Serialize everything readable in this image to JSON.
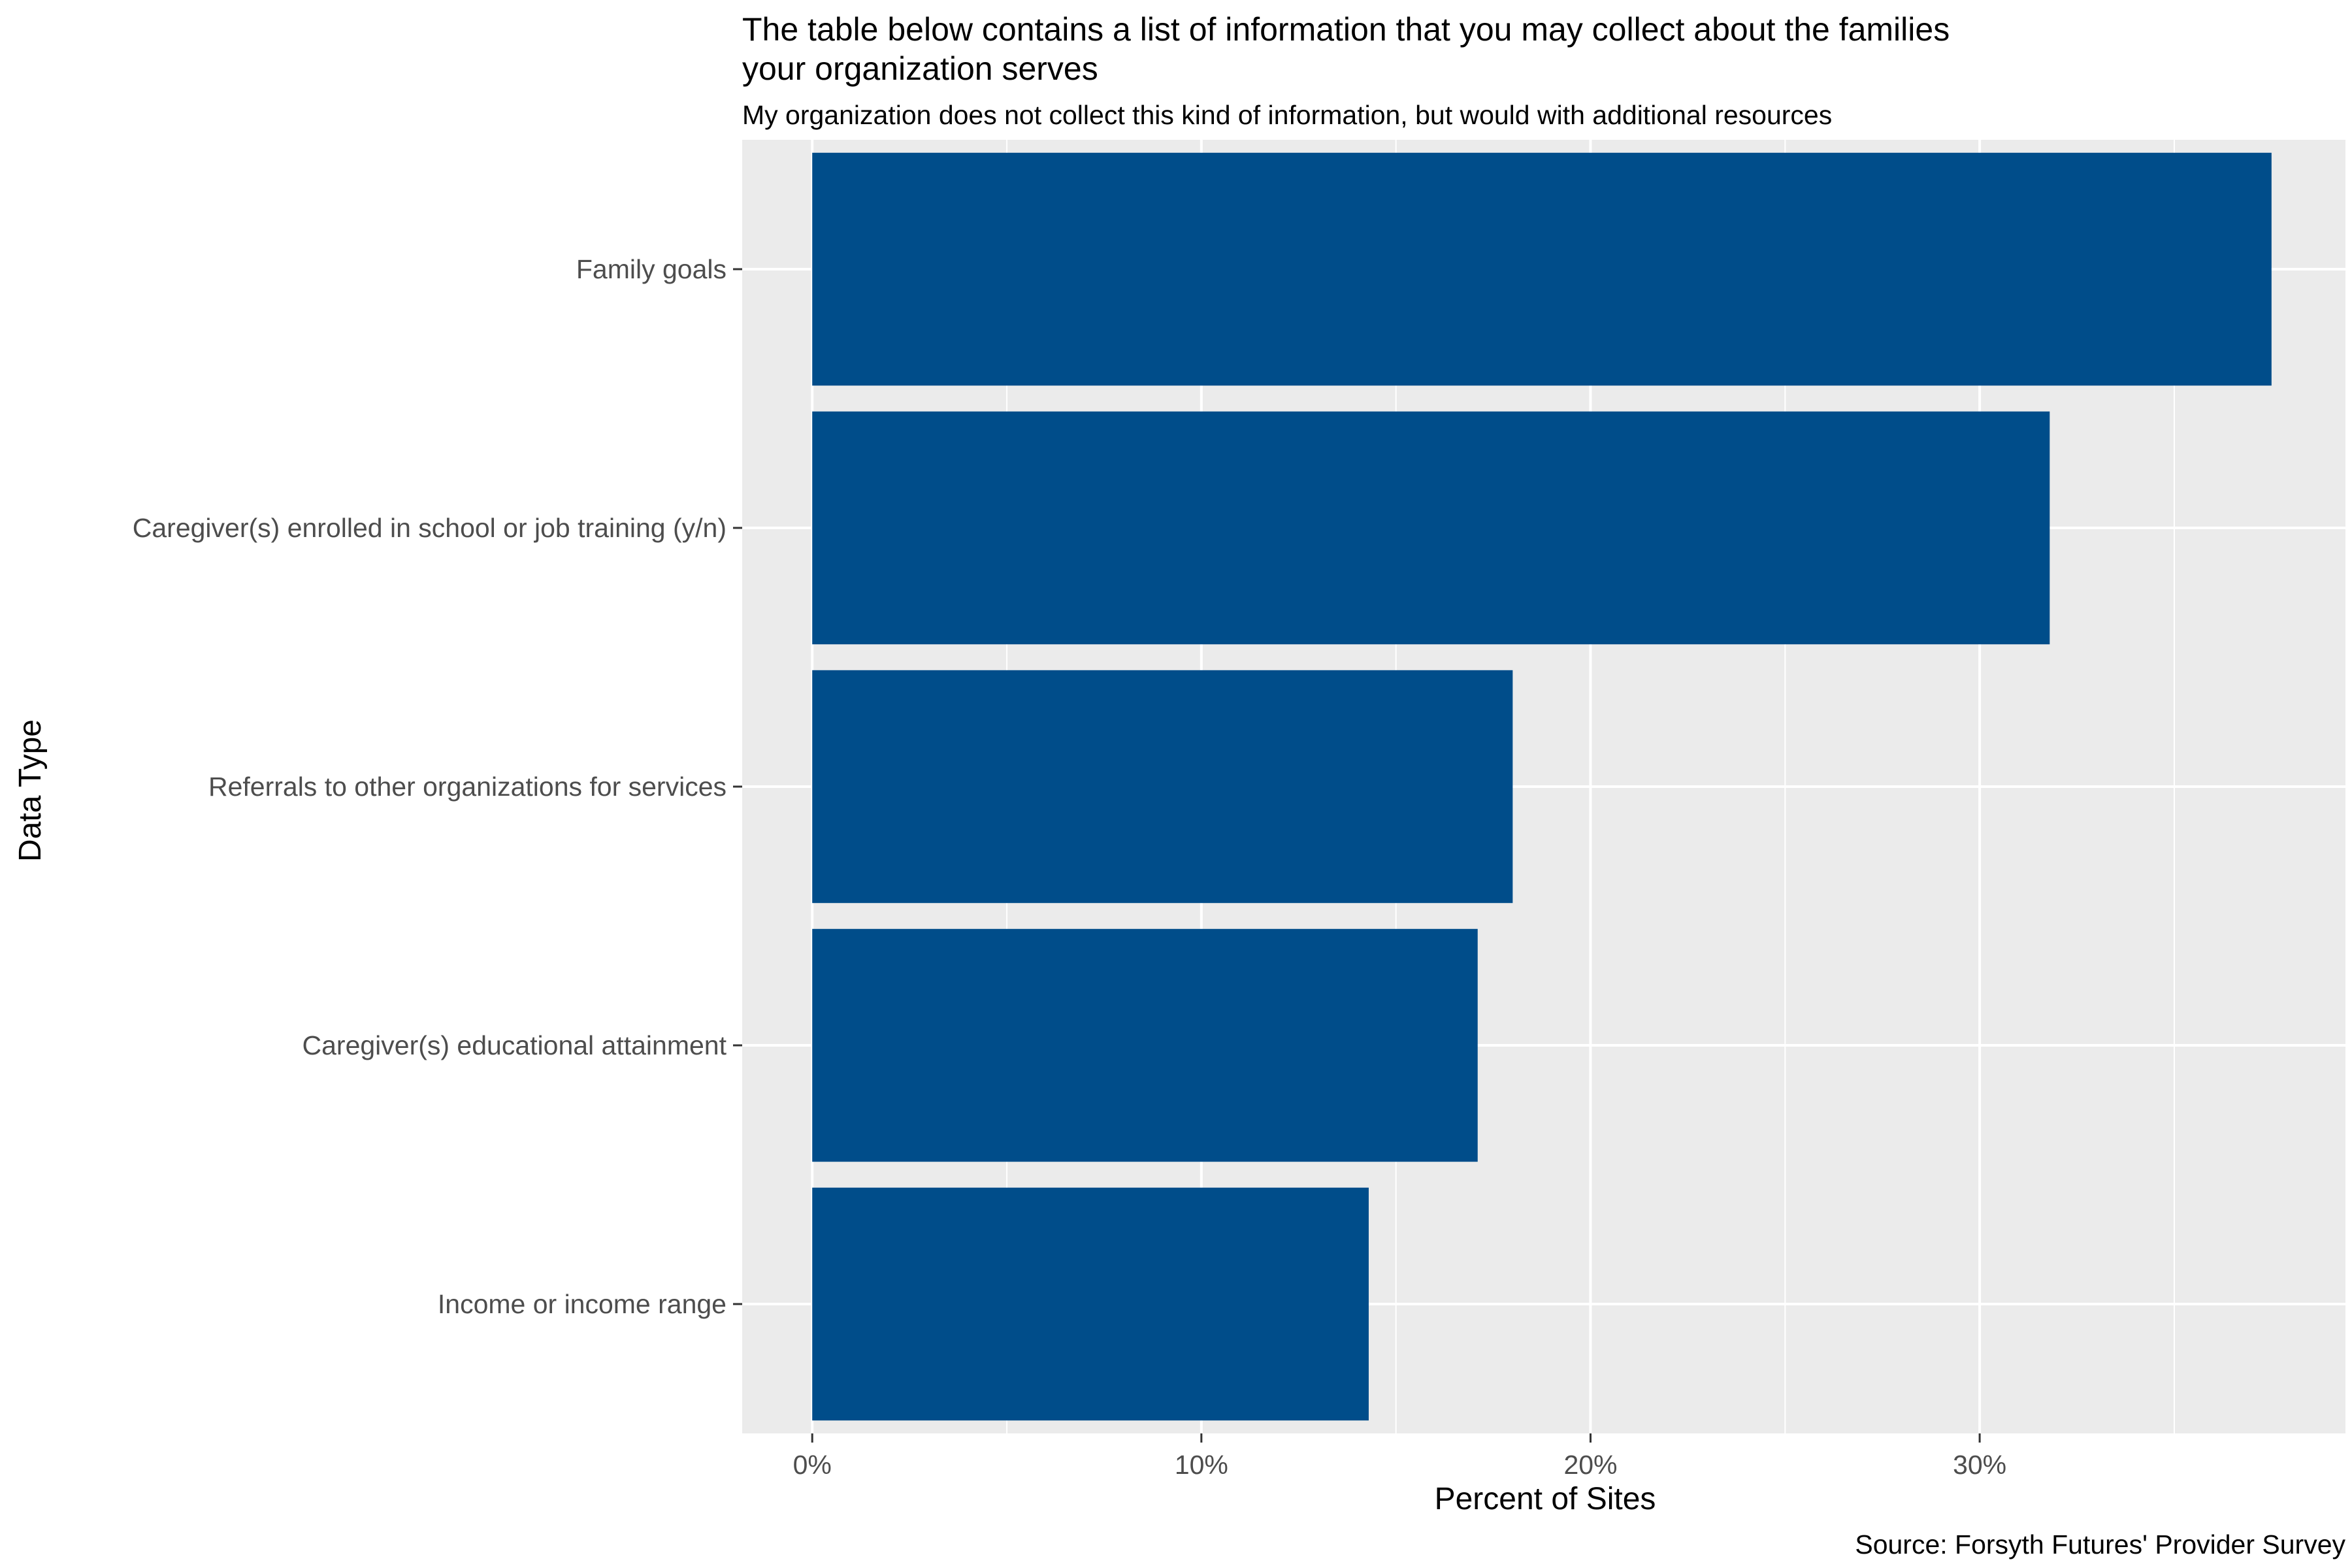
{
  "chart_data": {
    "type": "bar",
    "orientation": "horizontal",
    "title_lines": [
      "The table below contains a list of information that you may collect about the families",
      "your organization serves"
    ],
    "subtitle": "My organization does not collect this kind of information, but would with additional resources",
    "xlabel": "Percent of Sites",
    "ylabel": "Data Type",
    "caption": "Source: Forsyth Futures' Provider Survey",
    "categories": [
      "Family goals",
      "Caregiver(s) enrolled in school or job training (y/n)",
      "Referrals to other organizations for services",
      "Caregiver(s) educational attainment",
      "Income or income range"
    ],
    "values": [
      0.375,
      0.318,
      0.18,
      0.171,
      0.143
    ],
    "xlim": [
      -0.018,
      0.394
    ],
    "xticks": [
      0,
      0.1,
      0.2,
      0.3
    ],
    "xtick_labels": [
      "0%",
      "10%",
      "20%",
      "30%"
    ],
    "bar_color": "#004d8a",
    "panel_background": "#ebebeb",
    "grid_color": "#ffffff",
    "grid": true,
    "legend": "none"
  }
}
